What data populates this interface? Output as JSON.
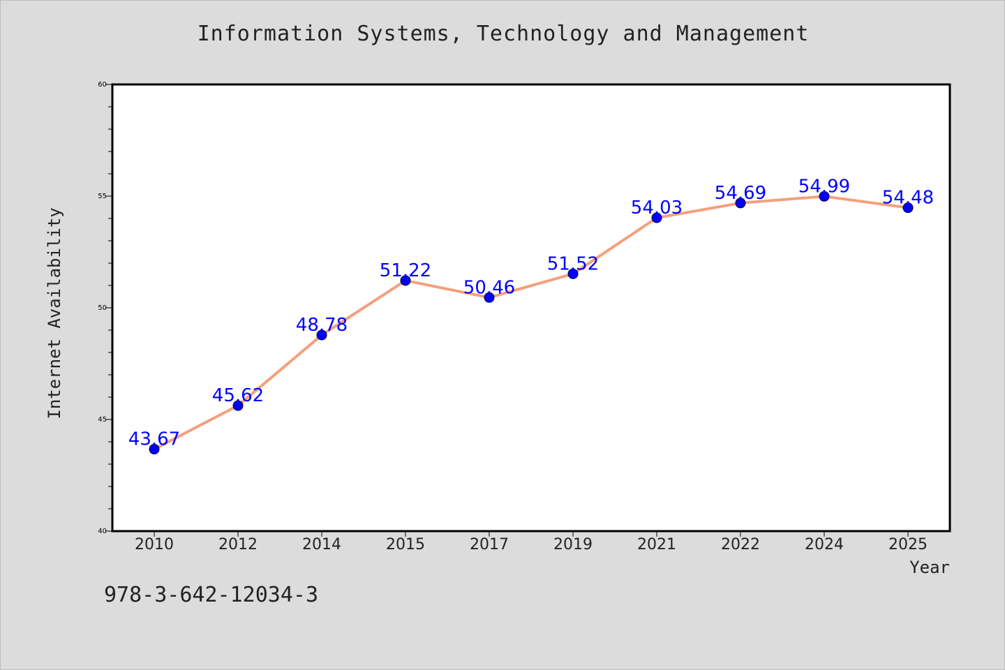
{
  "chart_data": {
    "type": "line",
    "title": "Information Systems, Technology and Management",
    "xlabel": "Year",
    "ylabel": "Internet Availability",
    "categories": [
      "2010",
      "2012",
      "2014",
      "2015",
      "2017",
      "2019",
      "2021",
      "2022",
      "2024",
      "2025"
    ],
    "series": [
      {
        "values": [
          43.67,
          45.62,
          48.78,
          51.22,
          50.46,
          51.52,
          54.03,
          54.69,
          54.99,
          54.48
        ],
        "labels": [
          "43.67",
          "45.62",
          "48.78",
          "51.22",
          "50.46",
          "51.52",
          "54.03",
          "54.69",
          "54.99",
          "54.48"
        ],
        "line_color": "#f4a07c",
        "marker_color": "#0000ff"
      }
    ],
    "ylim": [
      40,
      60
    ],
    "yticks": [
      "40",
      "45",
      "50",
      "55",
      "60"
    ],
    "grid": false,
    "legend": "none",
    "data_label_color": "#0000ff",
    "background": "#dcdcdc",
    "plot_background": "#ffffff"
  },
  "footer": {
    "isbn": "978-3-642-12034-3"
  }
}
